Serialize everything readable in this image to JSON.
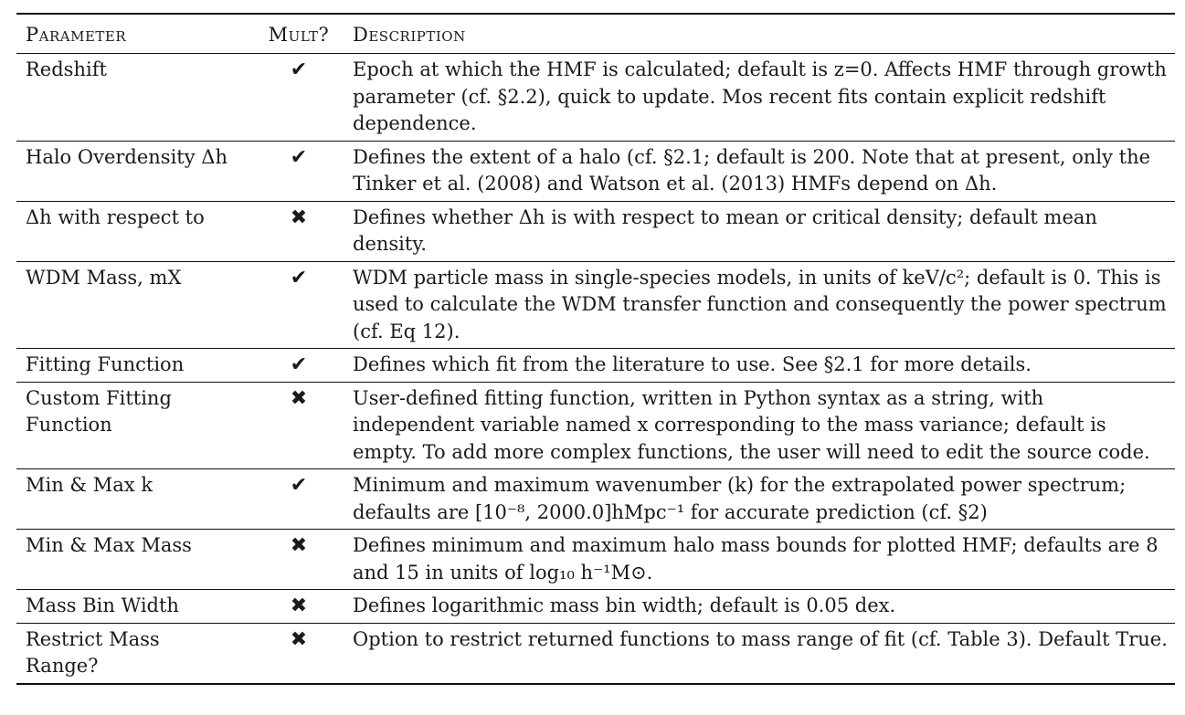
{
  "table": {
    "headers": [
      "Parameter",
      "Mult?",
      "Description"
    ],
    "rows": [
      {
        "parameter": "Redshift",
        "mult": "✔",
        "description": "Epoch at which the HMF is calculated; default is z=0. Affects HMF through growth parameter (cf. §2.2), quick to update. Mos recent fits contain explicit redshift dependence."
      },
      {
        "parameter": "Halo Overdensity Δh",
        "mult": "✔",
        "description": "Defines the extent of a halo (cf. §2.1; default is 200. Note that at present, only the Tinker et al. (2008) and Watson et al. (2013) HMFs depend on Δh."
      },
      {
        "parameter": "Δh with respect to",
        "mult": "✖",
        "description": "Defines whether Δh is with respect to mean or critical density; default mean density."
      },
      {
        "parameter": "WDM Mass, mX",
        "mult": "✔",
        "description": "WDM particle mass in single-species models, in units of keV/c²; default is 0. This is used to calculate the WDM transfer function and consequently the power spectrum (cf. Eq 12)."
      },
      {
        "parameter": "Fitting Function",
        "mult": "✔",
        "description": "Defines which fit from the literature to use. See §2.1 for more details."
      },
      {
        "parameter": "Custom Fitting Function",
        "mult": "✖",
        "description": "User-defined fitting function, written in Python syntax as a string, with independent variable named x corresponding to the mass variance; default is empty. To add more complex functions, the user will need to edit the source code."
      },
      {
        "parameter": "Min & Max k",
        "mult": "✔",
        "description": "Minimum and maximum wavenumber (k) for the extrapolated power spectrum; defaults are [10⁻⁸, 2000.0]hMpc⁻¹ for accurate prediction (cf. §2)"
      },
      {
        "parameter": "Min & Max Mass",
        "mult": "✖",
        "description": "Defines minimum and maximum halo mass bounds for plotted HMF; defaults are 8 and 15 in units of log₁₀ h⁻¹M⊙."
      },
      {
        "parameter": "Mass Bin Width",
        "mult": "✖",
        "description": "Defines logarithmic mass bin width; default is 0.05 dex."
      },
      {
        "parameter": "Restrict Mass Range?",
        "mult": "✖",
        "description": "Option to restrict returned functions to mass range of fit (cf. Table 3). Default True."
      }
    ]
  }
}
